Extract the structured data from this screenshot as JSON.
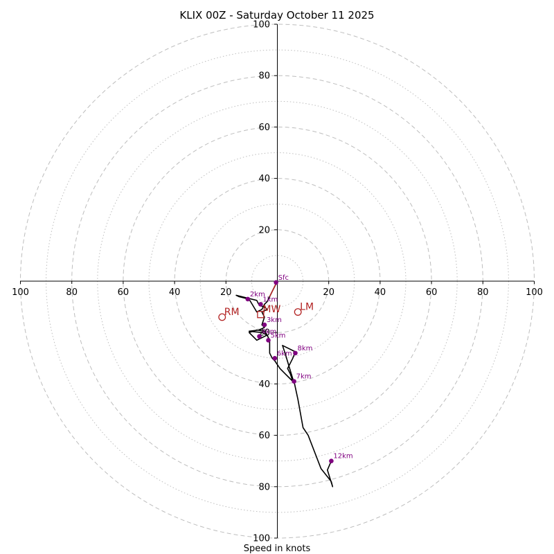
{
  "chart_data": {
    "type": "hodograph",
    "title": "KLIX 00Z - Saturday October 11 2025",
    "xlabel": "Speed in knots",
    "range": [
      -100,
      100
    ],
    "ring_major": [
      20,
      40,
      60,
      80,
      100
    ],
    "ring_minor": [
      10,
      30,
      50,
      70,
      90
    ],
    "x_ticks": [
      "100",
      "80",
      "60",
      "40",
      "20",
      "20",
      "40",
      "60",
      "80",
      "100"
    ],
    "x_tick_values": [
      -100,
      -80,
      -60,
      -40,
      -20,
      20,
      40,
      60,
      80,
      100
    ],
    "y_ticks": [
      "100",
      "80",
      "60",
      "40",
      "20",
      "20",
      "40",
      "60",
      "80",
      "100"
    ],
    "y_tick_values": [
      100,
      80,
      60,
      40,
      20,
      -20,
      -40,
      -60,
      -80,
      -100
    ],
    "trace": [
      [
        0,
        0
      ],
      [
        -1,
        -2
      ],
      [
        -2,
        -4
      ],
      [
        -3,
        -6
      ],
      [
        -4,
        -8
      ],
      [
        -5,
        -9
      ],
      [
        -6,
        -11
      ],
      [
        -8,
        -12
      ],
      [
        -11,
        -7
      ],
      [
        -15,
        -6
      ],
      [
        -16,
        -5.5
      ],
      [
        -8,
        -7.5
      ],
      [
        -7,
        -9.5
      ],
      [
        -5,
        -10
      ],
      [
        -4,
        -11
      ],
      [
        -6,
        -12
      ],
      [
        -5,
        -14
      ],
      [
        -6,
        -17
      ],
      [
        -5,
        -18
      ],
      [
        -7,
        -19
      ],
      [
        -11,
        -19.5
      ],
      [
        -6,
        -20
      ],
      [
        -4,
        -21
      ],
      [
        -6,
        -22
      ],
      [
        -8,
        -23
      ],
      [
        -9,
        -22
      ],
      [
        -11,
        -20
      ],
      [
        -8,
        -19
      ],
      [
        -5,
        -19.5
      ],
      [
        -4,
        -21
      ],
      [
        -3,
        -23
      ],
      [
        -3,
        -26
      ],
      [
        -3,
        -28
      ],
      [
        -2,
        -30
      ],
      [
        -1,
        -31
      ],
      [
        1,
        -34
      ],
      [
        3,
        -36
      ],
      [
        5,
        -38
      ],
      [
        6,
        -39
      ],
      [
        5,
        -36
      ],
      [
        4,
        -34
      ],
      [
        6,
        -30
      ],
      [
        7,
        -27.5
      ],
      [
        2,
        -25
      ],
      [
        3,
        -28
      ],
      [
        6,
        -38
      ],
      [
        6.5,
        -39
      ],
      [
        8,
        -46
      ],
      [
        10,
        -57
      ],
      [
        12,
        -60
      ],
      [
        17,
        -73
      ],
      [
        21,
        -78
      ],
      [
        21.5,
        -80
      ],
      [
        19.5,
        -73.5
      ],
      [
        21,
        -70
      ]
    ],
    "height_markers": [
      {
        "label": "Sfc",
        "u": -0.5,
        "v": -0.5
      },
      {
        "label": "1km",
        "u": -6.5,
        "v": -9
      },
      {
        "label": "2km",
        "u": -11.5,
        "v": -7
      },
      {
        "label": "3km",
        "u": -5,
        "v": -17
      },
      {
        "label": "4km",
        "u": -7,
        "v": -21.5
      },
      {
        "label": "5km",
        "u": -3.5,
        "v": -23
      },
      {
        "label": "6km",
        "u": -1,
        "v": -30
      },
      {
        "label": "7km",
        "u": 6.5,
        "v": -39
      },
      {
        "label": "8km",
        "u": 7,
        "v": -28
      },
      {
        "label": "12km",
        "u": 21,
        "v": -70
      }
    ],
    "storm_motion": [
      {
        "label": "RM",
        "u": -21.5,
        "v": -14,
        "shape": "circle"
      },
      {
        "label": "LM",
        "u": 8,
        "v": -12,
        "shape": "circle"
      },
      {
        "label": "MW",
        "u": -6.5,
        "v": -13,
        "shape": "square"
      }
    ],
    "colors": {
      "trace": "#000000",
      "markers": "#800080",
      "motion": "#b22222",
      "grid": "#bdbdbd",
      "axes": "#000000"
    }
  }
}
